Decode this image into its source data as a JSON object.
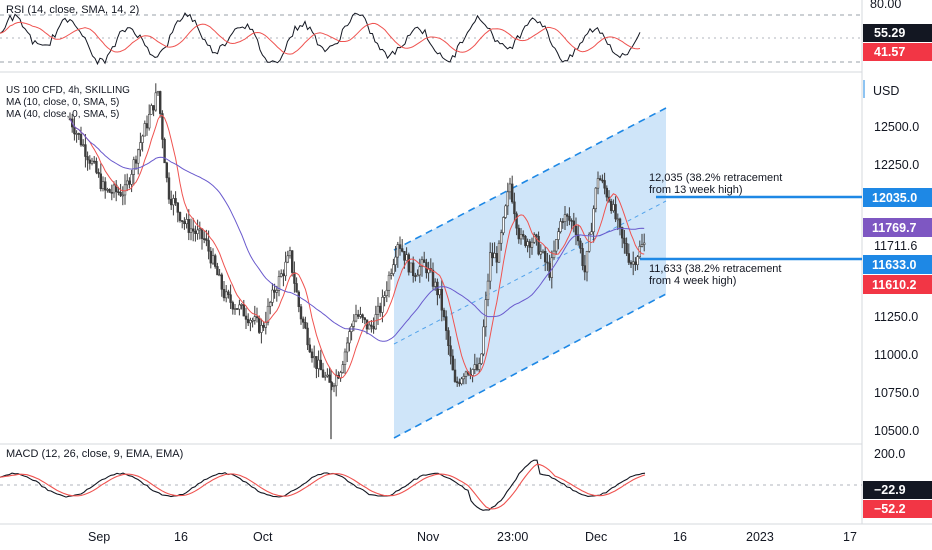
{
  "colors": {
    "candle": "#3b3b3b",
    "ma10": "#ef5350",
    "ma40": "#6a5acd",
    "channel_fill": "#bfdcf7",
    "channel_line": "#1e88e5",
    "level_line": "#1e88e5",
    "tag_blue": "#1e88e5",
    "tag_red": "#f23645",
    "tag_black": "#131722",
    "tag_purple": "#7e57c2"
  },
  "rsi_panel": {
    "title": "RSI (14, close, SMA, 14, 2)",
    "ticks": [
      "80.00"
    ],
    "tags": [
      {
        "value": "55.29",
        "color": "tag_black"
      },
      {
        "value": "41.57",
        "color": "tag_red"
      }
    ]
  },
  "price_panel": {
    "legend": [
      "US 100 CFD, 4h, SKILLING",
      "MA (10, close, 0, SMA, 5)",
      "MA (40, close, 0, SMA, 5)"
    ],
    "currency": "USD",
    "ticks": [
      "12500.0",
      "12250.0",
      "11711.6",
      "11250.0",
      "11000.0",
      "10750.0",
      "10500.0"
    ],
    "tags": [
      {
        "value": "12035.0",
        "color": "tag_blue"
      },
      {
        "value": "11769.7",
        "color": "tag_purple"
      },
      {
        "value": "11633.0",
        "color": "tag_blue"
      },
      {
        "value": "11610.2",
        "color": "tag_red"
      }
    ],
    "annotations": [
      {
        "line1": "12,035 (38.2% retracement",
        "line2": "from 13 week high)"
      },
      {
        "line1": "11,633 (38.2% retracement",
        "line2": "from 4 week high)"
      }
    ]
  },
  "macd_panel": {
    "title": "MACD (12, 26, close, 9, EMA, EMA)",
    "ticks": [
      "200.0"
    ],
    "tags": [
      {
        "value": "−22.9",
        "color": "tag_black"
      },
      {
        "value": "−52.2",
        "color": "tag_red"
      }
    ]
  },
  "x_axis": {
    "labels": [
      "Sep",
      "16",
      "Oct",
      "Nov",
      "23:00",
      "Dec",
      "16",
      "2023",
      "17"
    ]
  },
  "chart_data": {
    "type": "candlestick",
    "instrument": "US 100 CFD",
    "timeframe": "4h",
    "source": "SKILLING",
    "currency": "USD",
    "ylim": [
      10440,
      12690
    ],
    "x_labels": [
      "Sep",
      "16",
      "Oct",
      "Nov",
      "23:00",
      "Dec",
      "16",
      "2023",
      "17"
    ],
    "price_path": [
      [
        12480,
        12650
      ],
      [
        12150,
        12350
      ],
      [
        12050,
        12250
      ],
      [
        12400,
        12680
      ],
      [
        11780,
        11900
      ],
      [
        11550,
        11700
      ],
      [
        11250,
        11350
      ],
      [
        11080,
        11200
      ],
      [
        11150,
        11280
      ],
      [
        11550,
        11700
      ],
      [
        11350,
        11450
      ],
      [
        11000,
        11100
      ],
      [
        10880,
        10950
      ],
      [
        10480,
        10540
      ],
      [
        10720,
        10800
      ],
      [
        11080,
        11250
      ],
      [
        11500,
        11700
      ],
      [
        11350,
        11420
      ],
      [
        11200,
        11300
      ],
      [
        10850,
        10950
      ],
      [
        10720,
        10800
      ],
      [
        11250,
        11400
      ],
      [
        11950,
        12050
      ],
      [
        11850,
        11950
      ],
      [
        11700,
        11800
      ],
      [
        11850,
        11920
      ],
      [
        11650,
        11750
      ],
      [
        12050,
        12150
      ],
      [
        11850,
        11950
      ],
      [
        11700,
        11800
      ],
      [
        11520,
        11580
      ],
      [
        11680,
        11720
      ]
    ],
    "ma10_last": 11610.2,
    "ma40_last": 11769.7,
    "last_price": 11711.6,
    "levels": [
      {
        "value": 12035,
        "label": "12,035 (38.2% retracement from 13 week high)"
      },
      {
        "value": 11633,
        "label": "11,633 (38.2% retracement from 4 week high)"
      }
    ],
    "channel": {
      "upper_start": 11710,
      "upper_end": 12610,
      "lower_start": 10500,
      "lower_end": 11350
    },
    "rsi": {
      "ylim": [
        20,
        85
      ],
      "level": 80,
      "last": 55.29,
      "signal_last": 41.57
    },
    "macd": {
      "ylim": [
        -150,
        230
      ],
      "level": 200,
      "macd_last": -22.9,
      "signal_last": -52.2
    }
  }
}
